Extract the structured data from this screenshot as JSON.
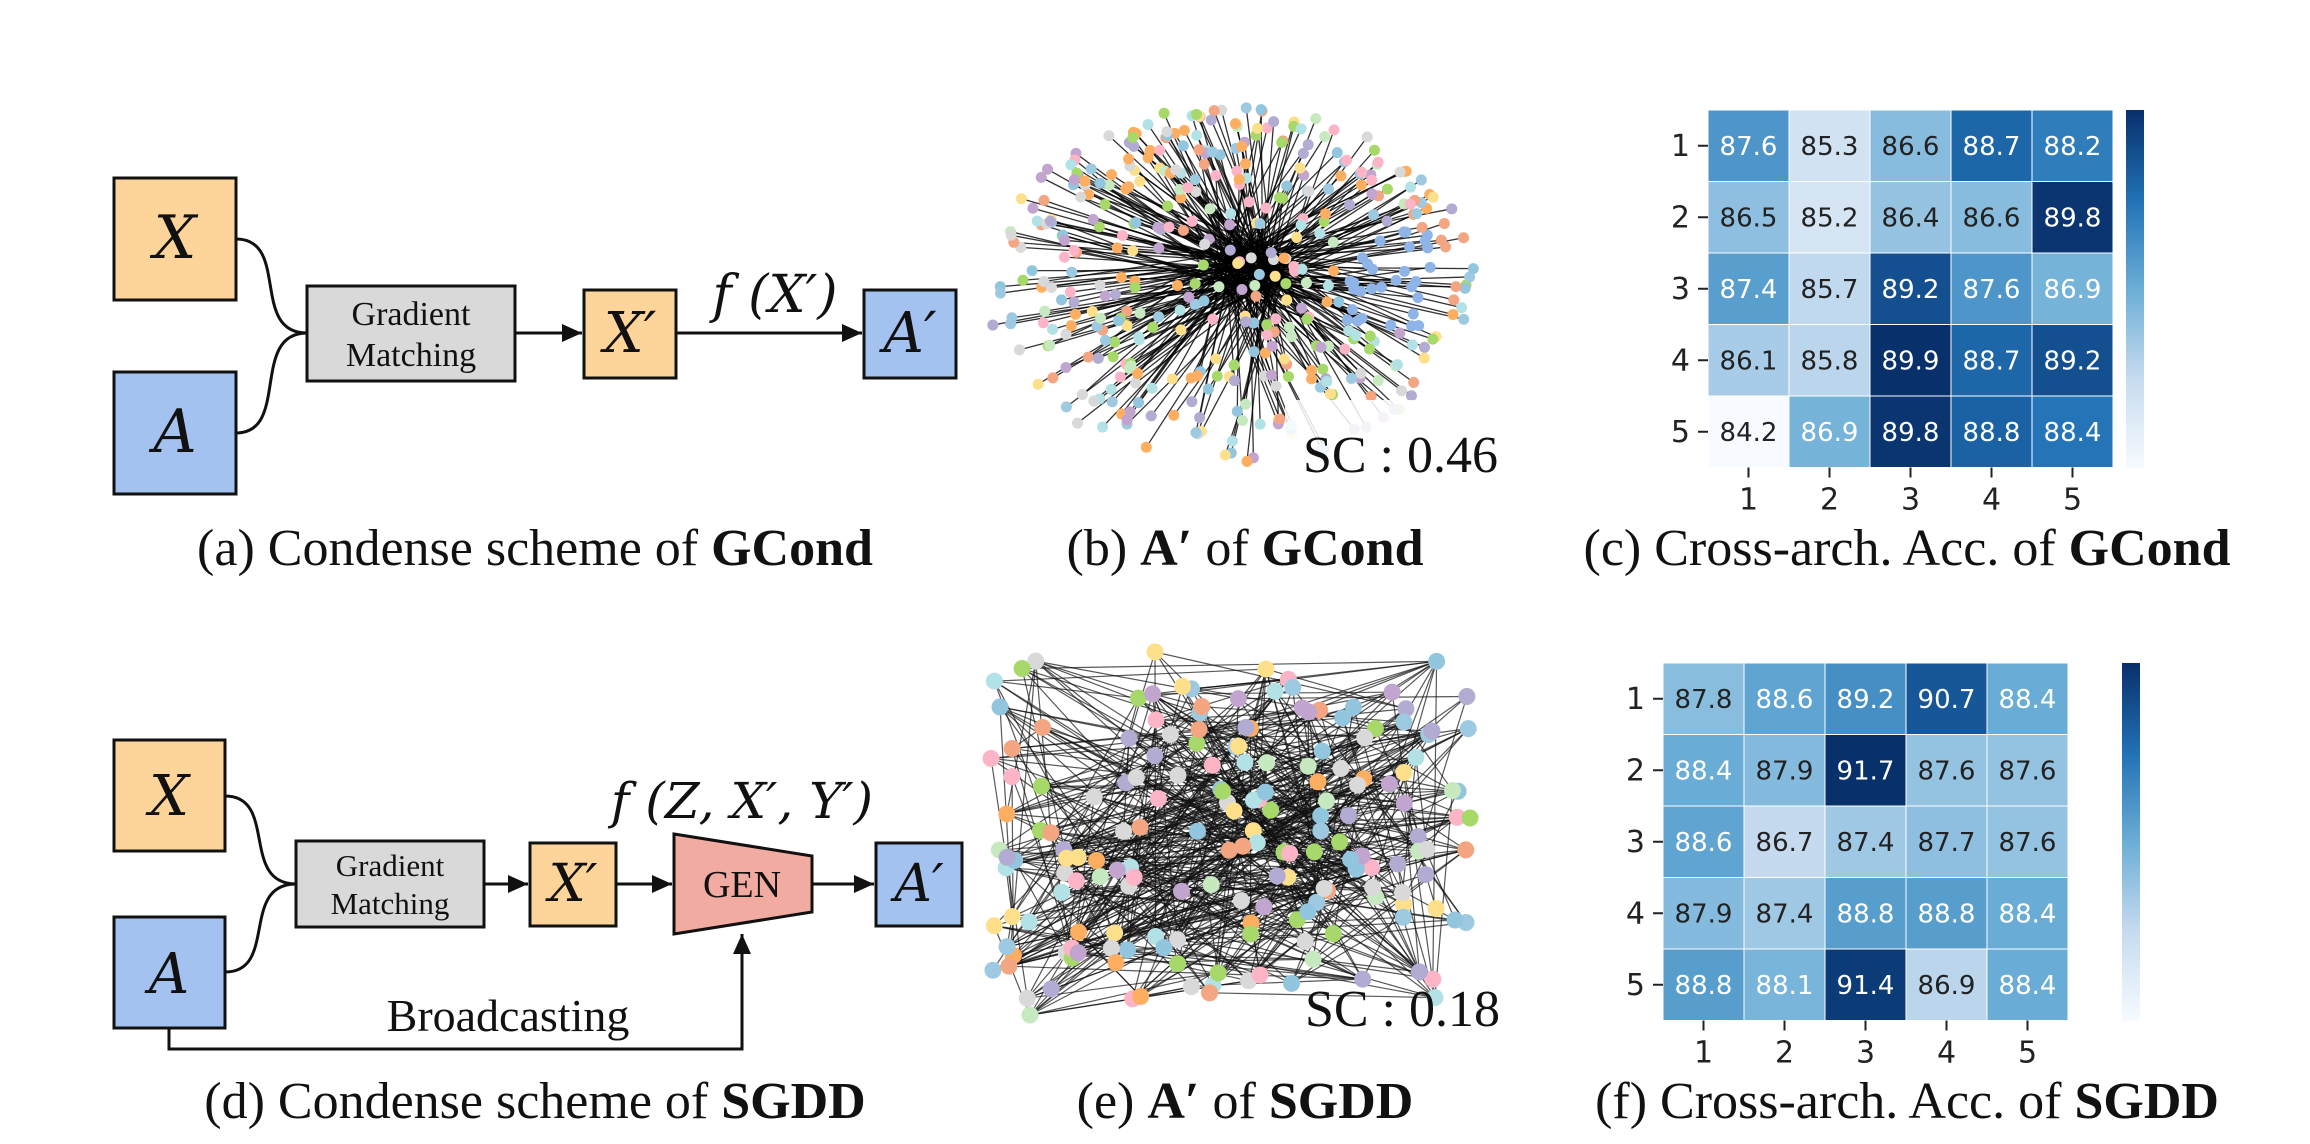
{
  "panel_a": {
    "caption_label": "(a)",
    "caption_text": "Condense scheme of ",
    "caption_bold": "GCond",
    "x_label": "X",
    "a_label": "A",
    "gm_line1": "Gradient",
    "gm_line2": "Matching",
    "xp_label": "X′",
    "func_label": "f (X′)",
    "ap_label": "A′"
  },
  "panel_b": {
    "caption_label": "(b)",
    "caption_symbol": "A′",
    "caption_text": " of ",
    "caption_bold": "GCond",
    "sc_label": "SC : 0.46"
  },
  "panel_c": {
    "caption_label": "(c)",
    "caption_text": "Cross-arch. Acc. of ",
    "caption_bold": "GCond"
  },
  "panel_d": {
    "caption_label": "(d)",
    "caption_text": "Condense scheme of ",
    "caption_bold": "SGDD",
    "x_label": "X",
    "a_label": "A",
    "gm_line1": "Gradient",
    "gm_line2": "Matching",
    "xp_label": "X′",
    "gen_label": "GEN",
    "func_label": "f (Z, X′, Y′)",
    "ap_label": "A′",
    "broadcast_label": "Broadcasting"
  },
  "panel_e": {
    "caption_label": "(e)",
    "caption_symbol": "A′",
    "caption_text": " of ",
    "caption_bold": "SGDD",
    "sc_label": "SC : 0.18"
  },
  "panel_f": {
    "caption_label": "(f)",
    "caption_text": "Cross-arch. Acc. of ",
    "caption_bold": "SGDD"
  },
  "colors": {
    "feature_box": "#fdd59a",
    "adjacency_box": "#a4c2ef",
    "gradient_box": "#d9d9d9",
    "gen_box": "#f2aba0",
    "heatmap_low": "#f5f9fe",
    "heatmap_high": "#08306b"
  },
  "chart_data": [
    {
      "type": "heatmap",
      "panel": "c",
      "row_labels": [
        "1",
        "2",
        "3",
        "4",
        "5"
      ],
      "col_labels": [
        "1",
        "2",
        "3",
        "4",
        "5"
      ],
      "values": [
        [
          87.6,
          85.3,
          86.6,
          88.7,
          88.2
        ],
        [
          86.5,
          85.2,
          86.4,
          86.6,
          89.8
        ],
        [
          87.4,
          85.7,
          89.2,
          87.6,
          86.9
        ],
        [
          86.1,
          85.8,
          89.9,
          88.7,
          89.2
        ],
        [
          84.2,
          86.9,
          89.8,
          88.8,
          88.4
        ]
      ],
      "colorscale": "Blues",
      "value_range": [
        84.2,
        89.9
      ]
    },
    {
      "type": "heatmap",
      "panel": "f",
      "row_labels": [
        "1",
        "2",
        "3",
        "4",
        "5"
      ],
      "col_labels": [
        "1",
        "2",
        "3",
        "4",
        "5"
      ],
      "values": [
        [
          87.8,
          88.6,
          89.2,
          90.7,
          88.4
        ],
        [
          88.4,
          87.9,
          91.7,
          87.6,
          87.6
        ],
        [
          88.6,
          86.7,
          87.4,
          87.7,
          87.6
        ],
        [
          87.9,
          87.4,
          88.8,
          88.8,
          88.4
        ],
        [
          88.8,
          88.1,
          91.4,
          86.9,
          88.4
        ]
      ],
      "colorscale": "Blues",
      "value_range": [
        85.0,
        91.7
      ]
    }
  ]
}
